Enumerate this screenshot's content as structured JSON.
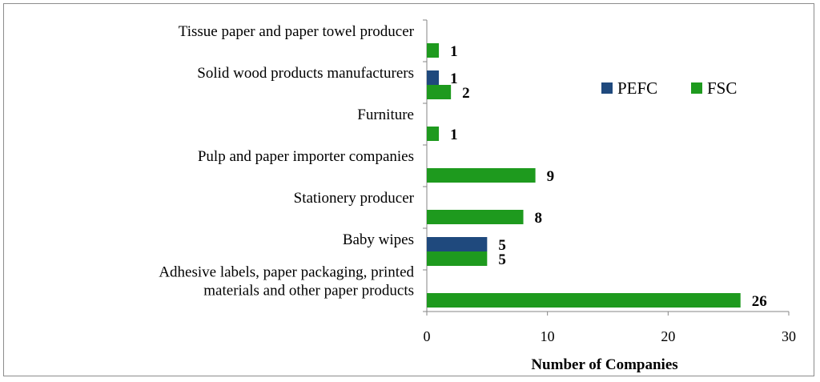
{
  "chart_data": {
    "type": "bar",
    "orientation": "horizontal",
    "categories": [
      [
        "Tissue paper and paper towel producer"
      ],
      [
        "Solid wood products manufacturers"
      ],
      [
        "Furniture"
      ],
      [
        "Pulp and paper importer companies"
      ],
      [
        "Stationery producer"
      ],
      [
        "Baby wipes"
      ],
      [
        "Adhesive labels, paper packaging, printed",
        "materials and other paper products"
      ]
    ],
    "series": [
      {
        "name": "PEFC",
        "color": "#1f497d",
        "values": [
          null,
          1,
          null,
          null,
          null,
          5,
          null
        ]
      },
      {
        "name": "FSC",
        "color": "#1e9a1e",
        "values": [
          1,
          2,
          1,
          9,
          8,
          5,
          26
        ]
      }
    ],
    "xlabel": "Number of Companies",
    "xlim": [
      0,
      30
    ],
    "xticks": [
      0,
      10,
      20,
      30
    ],
    "grid": false,
    "legend_position": "top-right"
  }
}
